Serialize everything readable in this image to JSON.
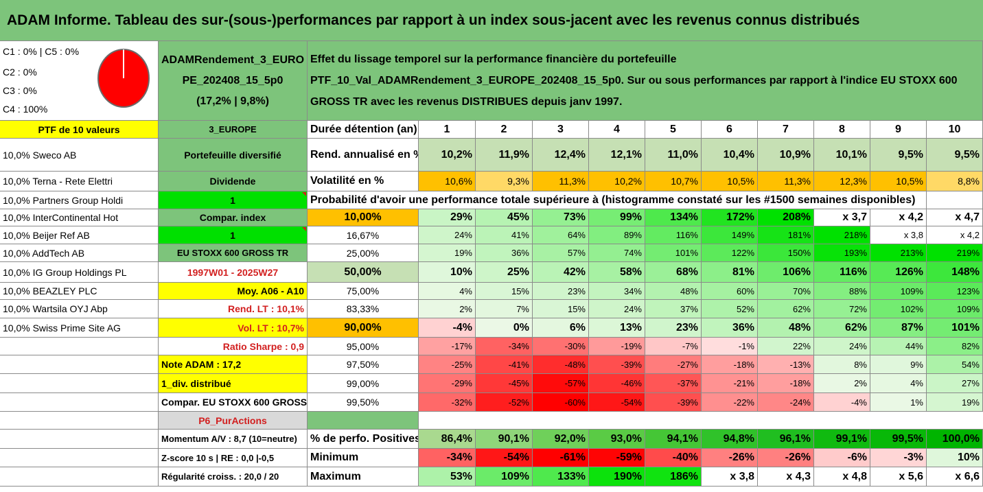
{
  "title": "ADAM Informe. Tableau des sur-(sous-)performances par rapport à un index sous-jacent avec les revenus connus distribués",
  "colors": {
    "header_green": "#7dc47b",
    "light_green_row": "#c6e0b4",
    "bright_green": "#00e000",
    "orange": "#ffc000",
    "yellow": "#ffff00",
    "text_red": "#d21f1f"
  },
  "classes": {
    "line1": "C1 : 0% | C5 : 0%",
    "line2": "C2 : 0%",
    "line3": "C3 : 0%",
    "line4": "C4 : 100%",
    "pie_icon": "pie-chart-icon"
  },
  "portfolio": {
    "name_line1": "ADAMRendement_3_EURO",
    "name_line2": "PE_202408_15_5p0",
    "name_line3": "(17,2% | 9,8%)",
    "description_line1": "Effet du lissage temporel sur la performance financière du portefeuille",
    "description_line2": "PTF_10_Val_ADAMRendement_3_EUROPE_202408_15_5p0. Sur ou sous performances par rapport à l'indice EU STOXX 600",
    "description_line3": "GROSS TR avec les revenus DISTRIBUES depuis janv 1997."
  },
  "left_column": {
    "header": "PTF de 10 valeurs",
    "holdings": [
      "10,0% Sweco AB",
      "10,0% Terna - Rete Elettri",
      "10,0% Partners Group Holdi",
      "10,0% InterContinental Hot",
      "10,0% Beijer Ref AB",
      "10,0% AddTech AB",
      "10,0% IG Group Holdings PL",
      "10,0% BEAZLEY PLC",
      "10,0% Wartsila OYJ Abp",
      "10,0% Swiss Prime Site AG"
    ]
  },
  "mid_column": {
    "region": "3_EUROPE",
    "style": "Portefeuille diversifié",
    "dividend_label": "Dividende",
    "dividend_value": "1",
    "compar_index_label": "Compar. index",
    "compar_index_value": "1",
    "index_name": "EU STOXX 600 GROSS TR",
    "period": "1997W01 - 2025W27",
    "moy": "Moy. A06 - A10",
    "rend_lt": "Rend. LT : 10,1%",
    "vol_lt": "Vol. LT : 10,7%",
    "ratio_sharpe": "Ratio Sharpe : 0,9",
    "note_adam": "Note ADAM : 17,2",
    "div_distribue": "1_div. distribué",
    "compar_full": "Compar. EU STOXX 600 GROSS TR",
    "p6": "P6_PurActions",
    "momentum": "Momentum A/V : 8,7 (10=neutre)",
    "zscore": "Z-score 10 s | RE : 0,0 |-0,5",
    "regularite": "Régularité croiss. : 20,0 / 20"
  },
  "table": {
    "duration_label": "Durée détention (an)",
    "years": [
      "1",
      "2",
      "3",
      "4",
      "5",
      "6",
      "7",
      "8",
      "9",
      "10"
    ],
    "rend_label": "Rend. annualisé en %",
    "rend_values": [
      "10,2%",
      "11,9%",
      "12,4%",
      "12,1%",
      "11,0%",
      "10,4%",
      "10,9%",
      "10,1%",
      "9,5%",
      "9,5%"
    ],
    "vol_label": "Volatilité en %",
    "vol_values": [
      "10,6%",
      "9,3%",
      "11,3%",
      "10,2%",
      "10,7%",
      "10,5%",
      "11,3%",
      "12,3%",
      "10,5%",
      "8,8%"
    ],
    "prob_title": "Probabilité d'avoir une performance totale supérieure à (histogramme constaté sur les #1500 semaines disponibles)",
    "prob_rows": [
      {
        "p": "10,00%",
        "v": [
          "29%",
          "45%",
          "73%",
          "99%",
          "134%",
          "172%",
          "208%",
          "x 3,7",
          "x 4,2",
          "x 4,7"
        ]
      },
      {
        "p": "16,67%",
        "v": [
          "24%",
          "41%",
          "64%",
          "89%",
          "116%",
          "149%",
          "181%",
          "218%",
          "x 3,8",
          "x 4,2"
        ]
      },
      {
        "p": "25,00%",
        "v": [
          "19%",
          "36%",
          "57%",
          "74%",
          "101%",
          "122%",
          "150%",
          "193%",
          "213%",
          "219%"
        ]
      },
      {
        "p": "50,00%",
        "v": [
          "10%",
          "25%",
          "42%",
          "58%",
          "68%",
          "81%",
          "106%",
          "116%",
          "126%",
          "148%"
        ]
      },
      {
        "p": "75,00%",
        "v": [
          "4%",
          "15%",
          "23%",
          "34%",
          "48%",
          "60%",
          "70%",
          "88%",
          "109%",
          "123%"
        ]
      },
      {
        "p": "83,33%",
        "v": [
          "2%",
          "7%",
          "15%",
          "24%",
          "37%",
          "52%",
          "62%",
          "72%",
          "102%",
          "109%"
        ]
      },
      {
        "p": "90,00%",
        "v": [
          "-4%",
          "0%",
          "6%",
          "13%",
          "23%",
          "36%",
          "48%",
          "62%",
          "87%",
          "101%"
        ]
      },
      {
        "p": "95,00%",
        "v": [
          "-17%",
          "-34%",
          "-30%",
          "-19%",
          "-7%",
          "-1%",
          "22%",
          "24%",
          "44%",
          "82%"
        ]
      },
      {
        "p": "97,50%",
        "v": [
          "-25%",
          "-41%",
          "-48%",
          "-39%",
          "-27%",
          "-18%",
          "-13%",
          "8%",
          "9%",
          "54%"
        ]
      },
      {
        "p": "99,00%",
        "v": [
          "-29%",
          "-45%",
          "-57%",
          "-46%",
          "-37%",
          "-21%",
          "-18%",
          "2%",
          "4%",
          "27%"
        ]
      },
      {
        "p": "99,50%",
        "v": [
          "-32%",
          "-52%",
          "-60%",
          "-54%",
          "-39%",
          "-22%",
          "-24%",
          "-4%",
          "1%",
          "19%"
        ]
      }
    ],
    "pos_label": "% de perfo. Positives",
    "pos_values": [
      "86,4%",
      "90,1%",
      "92,0%",
      "93,0%",
      "94,1%",
      "94,8%",
      "96,1%",
      "99,1%",
      "99,5%",
      "100,0%"
    ],
    "min_label": "Minimum",
    "min_values": [
      "-34%",
      "-54%",
      "-61%",
      "-59%",
      "-40%",
      "-26%",
      "-26%",
      "-6%",
      "-3%",
      "10%"
    ],
    "max_label": "Maximum",
    "max_values": [
      "53%",
      "109%",
      "133%",
      "190%",
      "186%",
      "x 3,8",
      "x 4,3",
      "x 4,8",
      "x 5,6",
      "x 6,6"
    ]
  }
}
